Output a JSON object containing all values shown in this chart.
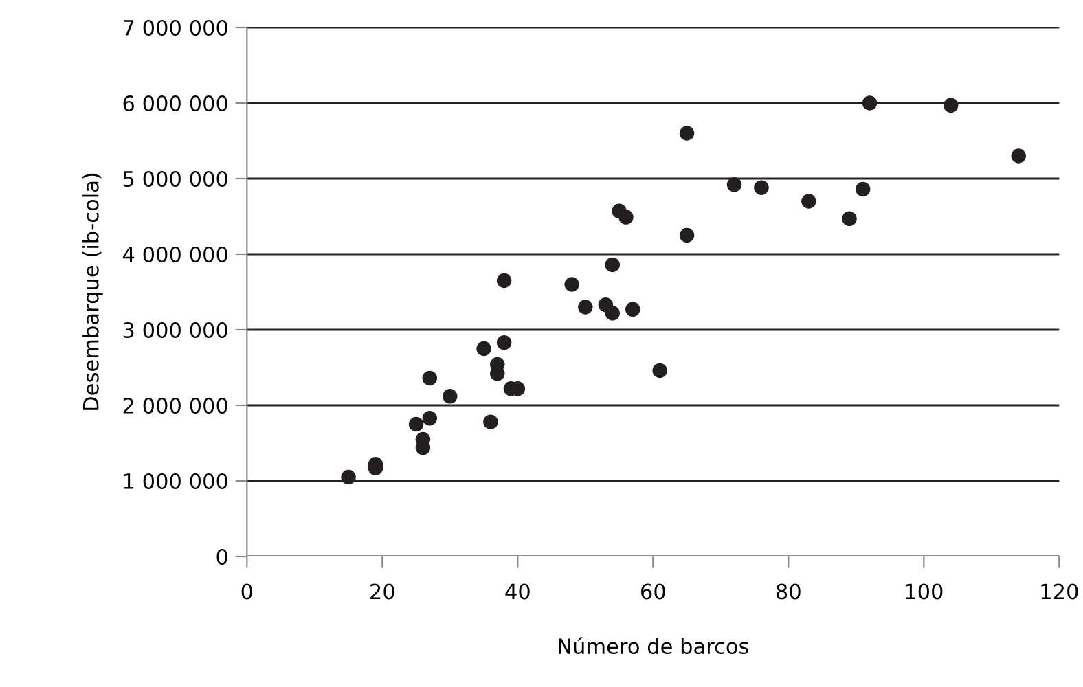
{
  "chart_data": {
    "type": "scatter",
    "xlabel": "Número de barcos",
    "ylabel": "Desembarque (ib-cola)",
    "x": [
      15,
      19,
      19,
      25,
      26,
      26,
      27,
      27,
      30,
      35,
      36,
      37,
      37,
      38,
      38,
      39,
      40,
      48,
      50,
      53,
      54,
      54,
      55,
      56,
      57,
      61,
      65,
      65,
      72,
      76,
      83,
      89,
      91,
      92,
      104,
      114
    ],
    "series": [
      {
        "color": "#231f20",
        "values": [
          1050000,
          1220000,
          1170000,
          1750000,
          1550000,
          1440000,
          1830000,
          2360000,
          2120000,
          2750000,
          1780000,
          2540000,
          2420000,
          2830000,
          3650000,
          2220000,
          2220000,
          3600000,
          3300000,
          3330000,
          3220000,
          3860000,
          4570000,
          4490000,
          3270000,
          2460000,
          5600000,
          4250000,
          4920000,
          4880000,
          4700000,
          4470000,
          4860000,
          6000000,
          5970000,
          5300000
        ]
      }
    ],
    "marker": "circle",
    "grid": "y",
    "xlim": [
      0,
      120
    ],
    "xticks": [
      0,
      20,
      40,
      60,
      80,
      100,
      120
    ],
    "ylim": [
      0,
      7000000
    ],
    "yticks": [
      {
        "value": 0,
        "label": "0"
      },
      {
        "value": 1000000,
        "label": "1 000 000"
      },
      {
        "value": 2000000,
        "label": "2 000 000"
      },
      {
        "value": 3000000,
        "label": "3 000 000"
      },
      {
        "value": 4000000,
        "label": "4 000 000"
      },
      {
        "value": 5000000,
        "label": "5 000 000"
      },
      {
        "value": 6000000,
        "label": "6 000 000"
      },
      {
        "value": 7000000,
        "label": "7 000 000"
      }
    ]
  }
}
